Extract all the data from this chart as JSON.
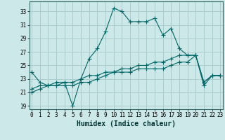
{
  "xlabel": "Humidex (Indice chaleur)",
  "bg_color": "#cce8e8",
  "grid_color": "#aacccc",
  "line_color": "#006666",
  "x_ticks": [
    0,
    1,
    2,
    3,
    4,
    5,
    6,
    7,
    8,
    9,
    10,
    11,
    12,
    13,
    14,
    15,
    16,
    17,
    18,
    19,
    20,
    21,
    22,
    23
  ],
  "y_ticks": [
    19,
    21,
    23,
    25,
    27,
    29,
    31,
    33
  ],
  "xlim": [
    -0.3,
    23.3
  ],
  "ylim": [
    18.5,
    34.5
  ],
  "series1_x": [
    0,
    1,
    2,
    3,
    4,
    5,
    6,
    7,
    8,
    9,
    10,
    11,
    12,
    13,
    14,
    15,
    16,
    17,
    18,
    19,
    20,
    21,
    22,
    23
  ],
  "series1_y": [
    24.0,
    22.5,
    22.0,
    22.0,
    22.5,
    19.0,
    23.0,
    26.0,
    27.5,
    30.0,
    33.5,
    33.0,
    31.5,
    31.5,
    31.5,
    32.0,
    29.5,
    30.5,
    27.5,
    26.5,
    26.5,
    22.5,
    23.5,
    23.5
  ],
  "series2_x": [
    0,
    1,
    2,
    3,
    4,
    5,
    6,
    7,
    8,
    9,
    10,
    11,
    12,
    13,
    14,
    15,
    16,
    17,
    18,
    19,
    20,
    21,
    22,
    23
  ],
  "series2_y": [
    21.5,
    22.0,
    22.0,
    22.5,
    22.5,
    22.5,
    23.0,
    23.5,
    23.5,
    24.0,
    24.0,
    24.5,
    24.5,
    25.0,
    25.0,
    25.5,
    25.5,
    26.0,
    26.5,
    26.5,
    26.5,
    22.5,
    23.5,
    23.5
  ],
  "series3_x": [
    0,
    1,
    2,
    3,
    4,
    5,
    6,
    7,
    8,
    9,
    10,
    11,
    12,
    13,
    14,
    15,
    16,
    17,
    18,
    19,
    20,
    21,
    22,
    23
  ],
  "series3_y": [
    21.0,
    21.5,
    22.0,
    22.0,
    22.0,
    22.0,
    22.5,
    22.5,
    23.0,
    23.5,
    24.0,
    24.0,
    24.0,
    24.5,
    24.5,
    24.5,
    24.5,
    25.0,
    25.5,
    25.5,
    26.5,
    22.0,
    23.5,
    23.5
  ],
  "marker_size": 2.5,
  "line_width": 0.8,
  "tick_fontsize": 5.5,
  "label_fontsize": 7.0
}
